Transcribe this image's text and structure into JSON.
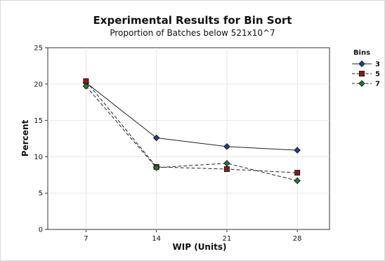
{
  "chart_data": {
    "type": "line",
    "title": "Experimental Results for Bin Sort",
    "subtitle": "Proportion of Batches below 521x10^7",
    "xlabel": "WIP (Units)",
    "ylabel": "Percent",
    "x": [
      7,
      14,
      21,
      28
    ],
    "x_tick_labels": [
      "7",
      "14",
      "21",
      "28"
    ],
    "ylim": [
      0,
      25
    ],
    "y_ticks": [
      0,
      5,
      10,
      15,
      20,
      25
    ],
    "grid": true,
    "legend": {
      "title": "Bins",
      "position": "right"
    },
    "series": [
      {
        "name": "3",
        "values": [
          20.2,
          12.6,
          11.4,
          10.9
        ],
        "color": "#1f3f8f",
        "marker": "diamond",
        "line_style": "solid"
      },
      {
        "name": "5",
        "values": [
          20.4,
          8.6,
          8.3,
          7.8
        ],
        "color": "#8b1a1a",
        "marker": "square",
        "line_style": "dashed"
      },
      {
        "name": "7",
        "values": [
          19.7,
          8.5,
          9.1,
          6.7
        ],
        "color": "#1e7a3c",
        "marker": "diamond",
        "line_style": "dashed"
      }
    ]
  }
}
